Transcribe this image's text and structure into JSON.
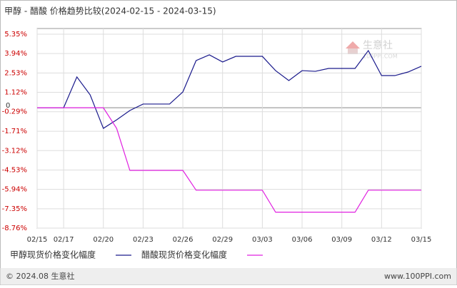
{
  "chart_data": {
    "type": "line",
    "title": "甲醇 - 醋酸 价格趋势比较(2024-02-15 - 2024-03-15)",
    "categories": [
      "02/15",
      null,
      "02/17",
      null,
      null,
      "02/20",
      null,
      null,
      "02/23",
      null,
      null,
      "02/26",
      null,
      null,
      "02/29",
      null,
      null,
      "03/03",
      null,
      null,
      "03/06",
      null,
      null,
      "03/09",
      null,
      null,
      "03/12",
      null,
      null,
      "03/15"
    ],
    "series": [
      {
        "name": "甲醇现货价格变化幅度",
        "color": "#1a1a8c",
        "values": [
          0,
          0,
          0,
          2.24,
          0.94,
          -1.5,
          -0.88,
          -0.2,
          0.27,
          0.27,
          0.27,
          1.15,
          3.43,
          3.85,
          3.33,
          3.74,
          3.74,
          3.74,
          2.7,
          1.98,
          2.7,
          2.65,
          2.86,
          2.86,
          2.86,
          4.16,
          2.34,
          2.34,
          2.6,
          3.02
        ]
      },
      {
        "name": "醋酸现货价格变化幅度",
        "color": "#e020e0",
        "values": [
          0,
          0,
          0,
          0,
          0,
          0,
          -1.5,
          -4.56,
          -4.56,
          -4.56,
          -4.56,
          -4.56,
          -6.0,
          -6.0,
          -6.0,
          -6.0,
          -6.0,
          -6.0,
          -7.6,
          -7.6,
          -7.6,
          -7.6,
          -7.6,
          -7.6,
          -7.6,
          -6.0,
          -6.0,
          -6.0,
          -6.0,
          -6.0
        ]
      }
    ],
    "ylim": [
      -8.76,
      5.35
    ],
    "yticks": [
      {
        "value": 5.35,
        "label": "5.35%"
      },
      {
        "value": 3.94,
        "label": "3.94%"
      },
      {
        "value": 2.53,
        "label": "2.53%"
      },
      {
        "value": 1.12,
        "label": "1.12%"
      },
      0,
      {
        "value": -0.29,
        "label": "-0.29%"
      },
      {
        "value": -1.71,
        "label": "-1.71%"
      },
      {
        "value": -3.12,
        "label": "-3.12%"
      },
      {
        "value": -4.53,
        "label": "-4.53%"
      },
      {
        "value": -5.94,
        "label": "-5.94%"
      },
      {
        "value": -7.35,
        "label": "-7.35%"
      },
      {
        "value": -8.76,
        "label": "-8.76%"
      }
    ],
    "grid": true,
    "watermark": [
      "生意社",
      "100PPI.COM"
    ],
    "footer": {
      "left": "© 2024.08 生意社",
      "right": "www.100PPI.com"
    }
  }
}
